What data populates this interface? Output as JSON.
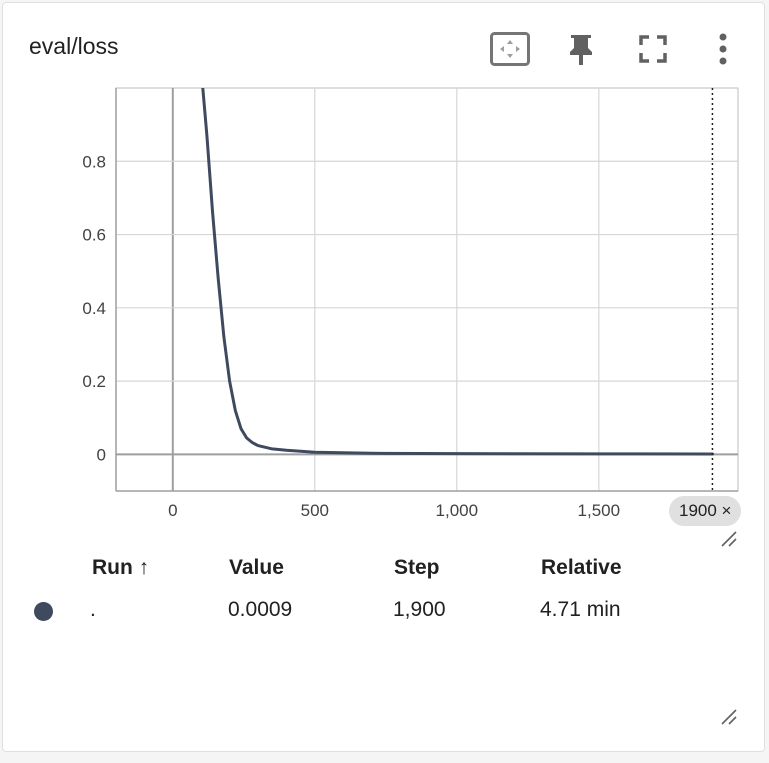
{
  "card": {
    "title": "eval/loss",
    "icons": [
      "fit-domain-icon",
      "pin-icon",
      "fullscreen-icon",
      "more-vert-icon"
    ]
  },
  "chart_data": {
    "type": "line",
    "series": [
      {
        "color": "#3f4a5f",
        "x": [
          100,
          120,
          140,
          160,
          180,
          200,
          220,
          240,
          260,
          280,
          300,
          350,
          400,
          500,
          700,
          1000,
          1500,
          1900
        ],
        "y": [
          1.05,
          0.87,
          0.66,
          0.48,
          0.32,
          0.2,
          0.12,
          0.07,
          0.045,
          0.032,
          0.024,
          0.015,
          0.011,
          0.006,
          0.003,
          0.002,
          0.0012,
          0.0009
        ]
      }
    ],
    "xlim": [
      -200,
      1990
    ],
    "ylim": [
      -0.1,
      1.0
    ],
    "xticks": [
      0,
      500,
      1000,
      1500
    ],
    "xtick_labels": [
      "0",
      "500",
      "1,000",
      "1,500"
    ],
    "yticks": [
      0,
      0.2,
      0.4,
      0.6,
      0.8
    ],
    "ytick_labels": [
      "0",
      "0.2",
      "0.4",
      "0.6",
      "0.8"
    ],
    "grid": true,
    "hover_step": 1900,
    "hover_label": "1900 ×"
  },
  "table": {
    "headers": {
      "run": "Run ↑",
      "value": "Value",
      "step": "Step",
      "relative": "Relative"
    },
    "row": {
      "run": ".",
      "value": "0.0009",
      "step": "1,900",
      "relative": "4.71 min",
      "color": "#3f4a5f"
    }
  }
}
